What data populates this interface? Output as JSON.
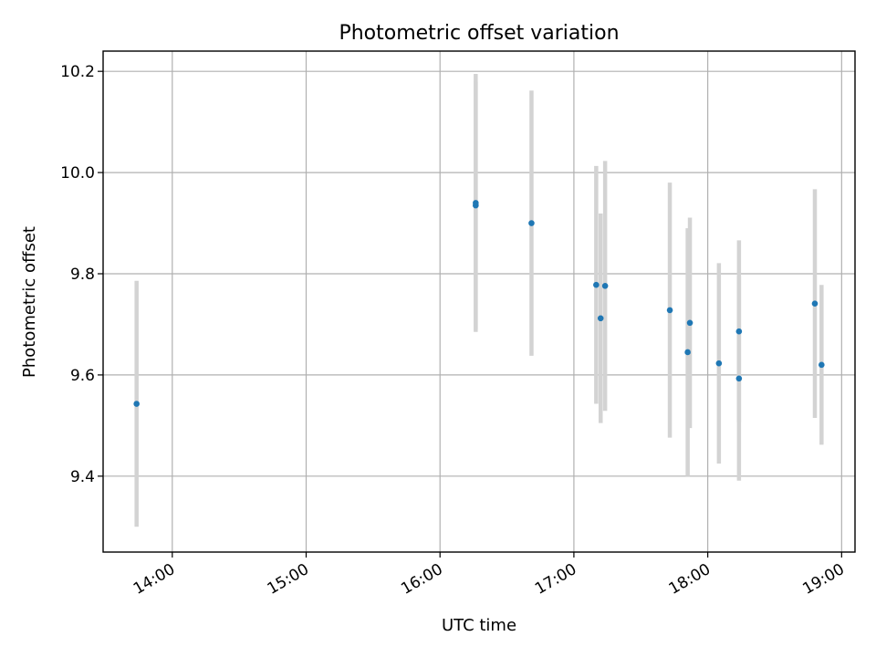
{
  "chart_data": {
    "type": "scatter",
    "title": "Photometric offset variation",
    "xlabel": "UTC time",
    "ylabel": "Photometric offset",
    "x_axis_kind": "time",
    "x_range": [
      "13:29",
      "19:06"
    ],
    "xticks": [
      "14:00",
      "15:00",
      "16:00",
      "17:00",
      "18:00",
      "19:00"
    ],
    "ylim": [
      9.25,
      10.24
    ],
    "yticks": [
      "9.4",
      "9.6",
      "9.8",
      "10.0",
      "10.2"
    ],
    "grid": true,
    "colors": {
      "point": "#1f77b4",
      "errorbar": "#d3d3d3"
    },
    "points": [
      {
        "x": "13:44",
        "y": 9.543,
        "yerr": 0.243
      },
      {
        "x": "16:16",
        "y": 9.935,
        "yerr": 0.245
      },
      {
        "x": "16:16",
        "y": 9.94,
        "yerr": 0.255
      },
      {
        "x": "16:41",
        "y": 9.9,
        "yerr": 0.262
      },
      {
        "x": "17:10",
        "y": 9.778,
        "yerr": 0.235
      },
      {
        "x": "17:12",
        "y": 9.712,
        "yerr": 0.207
      },
      {
        "x": "17:14",
        "y": 9.776,
        "yerr": 0.247
      },
      {
        "x": "17:43",
        "y": 9.728,
        "yerr": 0.252
      },
      {
        "x": "17:51",
        "y": 9.645,
        "yerr": 0.245
      },
      {
        "x": "17:52",
        "y": 9.703,
        "yerr": 0.208
      },
      {
        "x": "18:05",
        "y": 9.623,
        "yerr": 0.198
      },
      {
        "x": "18:14",
        "y": 9.686,
        "yerr": 0.18
      },
      {
        "x": "18:14",
        "y": 9.593,
        "yerr": 0.202
      },
      {
        "x": "18:48",
        "y": 9.741,
        "yerr": 0.226
      },
      {
        "x": "18:51",
        "y": 9.62,
        "yerr": 0.158
      }
    ]
  }
}
